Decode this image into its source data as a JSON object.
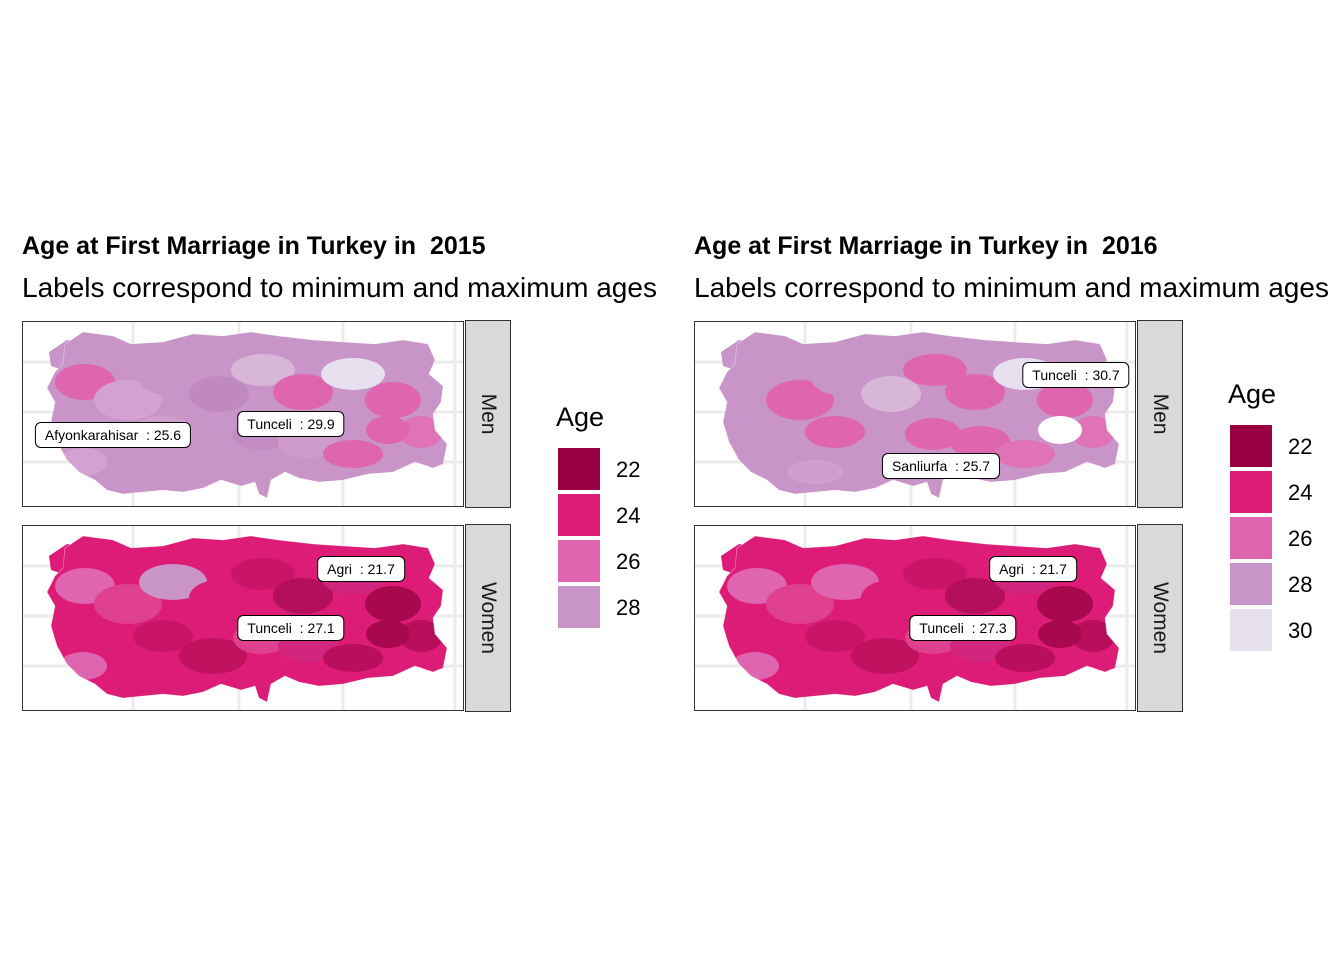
{
  "colors": {
    "age_22": "#980043",
    "age_24": "#dd1c77",
    "age_26": "#df65b0",
    "age_28": "#c994c7",
    "age_30": "#e7e1ef"
  },
  "figures": [
    {
      "title": "Age at First Marriage in Turkey in  2015",
      "subtitle": "Labels correspond to minimum and maximum ages",
      "legend": {
        "title": "Age",
        "breaks": [
          "22",
          "24",
          "26",
          "28"
        ],
        "colors": [
          "#980043",
          "#dd1c77",
          "#df65b0",
          "#c994c7"
        ]
      },
      "panels": [
        {
          "strip": "Men",
          "base_color": "#c994c7",
          "labels": [
            {
              "province": "Afyonkarahisar",
              "value": "25.6",
              "text": "Afyonkarahisar  : 25.6"
            },
            {
              "province": "Tunceli",
              "value": "29.9",
              "text": "Tunceli  : 29.9"
            }
          ]
        },
        {
          "strip": "Women",
          "base_color": "#dd1c77",
          "labels": [
            {
              "province": "Agri",
              "value": "21.7",
              "text": "Agri  : 21.7"
            },
            {
              "province": "Tunceli",
              "value": "27.1",
              "text": "Tunceli  : 27.1"
            }
          ]
        }
      ]
    },
    {
      "title": "Age at First Marriage in Turkey in  2016",
      "subtitle": "Labels correspond to minimum and maximum ages",
      "legend": {
        "title": "Age",
        "breaks": [
          "22",
          "24",
          "26",
          "28",
          "30"
        ],
        "colors": [
          "#980043",
          "#dd1c77",
          "#df65b0",
          "#c994c7",
          "#e7e1ef"
        ]
      },
      "panels": [
        {
          "strip": "Men",
          "base_color": "#c994c7",
          "labels": [
            {
              "province": "Tunceli",
              "value": "30.7",
              "text": "Tunceli  : 30.7"
            },
            {
              "province": "Sanliurfa",
              "value": "25.7",
              "text": "Sanliurfa  : 25.7"
            }
          ]
        },
        {
          "strip": "Women",
          "base_color": "#dd1c77",
          "labels": [
            {
              "province": "Agri",
              "value": "21.7",
              "text": "Agri  : 21.7"
            },
            {
              "province": "Tunceli",
              "value": "27.3",
              "text": "Tunceli  : 27.3"
            }
          ]
        }
      ]
    }
  ]
}
